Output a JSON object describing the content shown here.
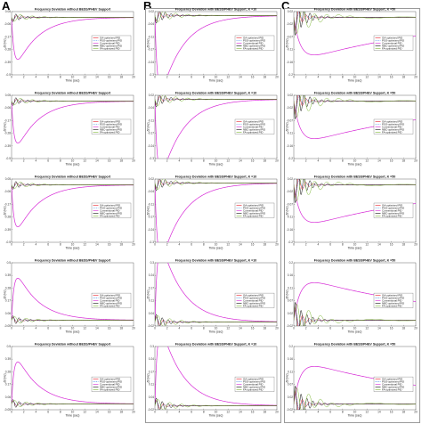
{
  "figure": {
    "panels": [
      {
        "label": "A",
        "legend": [
          "GA-optimized PID",
          "PSO-optimized PID",
          "Conventional PID",
          "NBC-optimized PID",
          "FA-optimized PID"
        ]
      },
      {
        "label": "B"
      },
      {
        "label": "C"
      }
    ]
  },
  "colors": {
    "ga": "#e8202a",
    "pso": "#2e7fe6",
    "conv": "#d628d6",
    "nbc": "#111111",
    "fa": "#7cb733"
  },
  "chart_data": [
    {
      "type": "line",
      "column": "A",
      "title": "Frequency Deviation without BESS/PHEV Support",
      "xlabel": "Time (sec)",
      "ylabel": "Δf (Hz)",
      "xlim": [
        0,
        20
      ],
      "ylim": [
        -0.5,
        0.05
      ],
      "shape": "dip",
      "series": [
        {
          "name": "GA-optimized PID",
          "color": "#e8202a"
        },
        {
          "name": "PSO-optimized PID",
          "color": "#2e7fe6"
        },
        {
          "name": "Conventional PID",
          "color": "#d628d6"
        },
        {
          "name": "NBC-optimized PID",
          "color": "#111111"
        },
        {
          "name": "FA-optimized PID",
          "color": "#7cb733"
        }
      ]
    },
    {
      "type": "line",
      "column": "A",
      "title": "Frequency Deviation without BESS/PHEV Support",
      "xlabel": "Time (sec)",
      "ylabel": "Δf (Hz)",
      "xlim": [
        0,
        20
      ],
      "ylim": [
        -0.5,
        0.05
      ],
      "shape": "dip",
      "series": [
        {
          "name": "GA-optimized PID",
          "color": "#e8202a"
        },
        {
          "name": "PSO-optimized PID",
          "color": "#2e7fe6"
        },
        {
          "name": "Conventional PID",
          "color": "#d628d6"
        },
        {
          "name": "NBC-optimized PID",
          "color": "#111111"
        },
        {
          "name": "FA-optimized PID",
          "color": "#7cb733"
        }
      ]
    },
    {
      "type": "line",
      "column": "A",
      "title": "Frequency Deviation without BESS/PHEV Support",
      "xlabel": "Time (sec)",
      "ylabel": "Δf (Hz)",
      "xlim": [
        0,
        20
      ],
      "ylim": [
        -0.5,
        0.05
      ],
      "shape": "dip",
      "series": [
        {
          "name": "GA-optimized PID",
          "color": "#e8202a"
        },
        {
          "name": "PSO-optimized PID",
          "color": "#2e7fe6"
        },
        {
          "name": "Conventional PID",
          "color": "#d628d6"
        },
        {
          "name": "NBC-optimized PID",
          "color": "#111111"
        },
        {
          "name": "FA-optimized PID",
          "color": "#7cb733"
        }
      ]
    },
    {
      "type": "line",
      "column": "A",
      "title": "Frequency Deviation without BESS/PHEV Support",
      "xlabel": "Time (sec)",
      "ylabel": "Δf (Hz)",
      "xlim": [
        0,
        20
      ],
      "ylim": [
        -0.05,
        0.5
      ],
      "shape": "peak",
      "series": [
        {
          "name": "GA-optimized PID",
          "color": "#e8202a"
        },
        {
          "name": "PSO-optimized PID",
          "color": "#2e7fe6"
        },
        {
          "name": "Conventional PID",
          "color": "#d628d6"
        },
        {
          "name": "NBC-optimized PID",
          "color": "#111111"
        },
        {
          "name": "FA-optimized PID",
          "color": "#7cb733"
        }
      ]
    },
    {
      "type": "line",
      "column": "A",
      "title": "Frequency Deviation without BESS/PHEV Support",
      "xlabel": "Time (sec)",
      "ylabel": "Δf (Hz)",
      "xlim": [
        0,
        20
      ],
      "ylim": [
        -0.05,
        0.5
      ],
      "shape": "peak",
      "series": [
        {
          "name": "GA-optimized PID",
          "color": "#e8202a"
        },
        {
          "name": "PSO-optimized PID",
          "color": "#2e7fe6"
        },
        {
          "name": "Conventional PID",
          "color": "#d628d6"
        },
        {
          "name": "NBC-optimized PID",
          "color": "#111111"
        },
        {
          "name": "FA-optimized PID",
          "color": "#7cb733"
        }
      ]
    },
    {
      "type": "line",
      "column": "B",
      "title": "Frequency Deviation with BESS/PHEV Support, K =10",
      "xlabel": "Time (sec)",
      "ylabel": "Δf (Hz)",
      "xlim": [
        0,
        20
      ],
      "ylim": [
        -0.3,
        0.02
      ],
      "shape": "dip",
      "series": [
        {
          "name": "GA-optimized PID",
          "color": "#e8202a"
        },
        {
          "name": "PSO-optimized PID",
          "color": "#2e7fe6"
        },
        {
          "name": "Conventional PID",
          "color": "#d628d6"
        },
        {
          "name": "NBC-optimized PID",
          "color": "#111111"
        },
        {
          "name": "FA-optimized PID",
          "color": "#7cb733"
        }
      ]
    },
    {
      "type": "line",
      "column": "B",
      "title": "Frequency Deviation with BESS/PHEV Support, K =10",
      "xlabel": "Time (sec)",
      "ylabel": "Δf (Hz)",
      "xlim": [
        0,
        20
      ],
      "ylim": [
        -0.3,
        0.02
      ],
      "shape": "dip",
      "series": [
        {
          "name": "GA-optimized PID",
          "color": "#e8202a"
        },
        {
          "name": "PSO-optimized PID",
          "color": "#2e7fe6"
        },
        {
          "name": "Conventional PID",
          "color": "#d628d6"
        },
        {
          "name": "NBC-optimized PID",
          "color": "#111111"
        },
        {
          "name": "FA-optimized PID",
          "color": "#7cb733"
        }
      ]
    },
    {
      "type": "line",
      "column": "B",
      "title": "Frequency Deviation with BESS/PHEV Support, K =10",
      "xlabel": "Time (sec)",
      "ylabel": "Δf (Hz)",
      "xlim": [
        0,
        20
      ],
      "ylim": [
        -0.3,
        0.02
      ],
      "shape": "dip",
      "series": [
        {
          "name": "GA-optimized PID",
          "color": "#e8202a"
        },
        {
          "name": "PSO-optimized PID",
          "color": "#2e7fe6"
        },
        {
          "name": "Conventional PID",
          "color": "#d628d6"
        },
        {
          "name": "NBC-optimized PID",
          "color": "#111111"
        },
        {
          "name": "FA-optimized PID",
          "color": "#7cb733"
        }
      ]
    },
    {
      "type": "line",
      "column": "B",
      "title": "Frequency Deviation with BESS/PHEV Support, K =10",
      "xlabel": "Time (sec)",
      "ylabel": "Δf (Hz)",
      "xlim": [
        0,
        20
      ],
      "ylim": [
        -0.02,
        0.3
      ],
      "shape": "peak",
      "series": [
        {
          "name": "GA-optimized PID",
          "color": "#e8202a"
        },
        {
          "name": "PSO-optimized PID",
          "color": "#2e7fe6"
        },
        {
          "name": "Conventional PID",
          "color": "#d628d6"
        },
        {
          "name": "NBC-optimized PID",
          "color": "#111111"
        },
        {
          "name": "FA-optimized PID",
          "color": "#7cb733"
        }
      ]
    },
    {
      "type": "line",
      "column": "B",
      "title": "Frequency Deviation with BESS/PHEV Support, K =10",
      "xlabel": "Time (sec)",
      "ylabel": "Δf (Hz)",
      "xlim": [
        0,
        20
      ],
      "ylim": [
        -0.02,
        0.3
      ],
      "shape": "peak",
      "series": [
        {
          "name": "GA-optimized PID",
          "color": "#e8202a"
        },
        {
          "name": "PSO-optimized PID",
          "color": "#2e7fe6"
        },
        {
          "name": "Conventional PID",
          "color": "#d628d6"
        },
        {
          "name": "NBC-optimized PID",
          "color": "#111111"
        },
        {
          "name": "FA-optimized PID",
          "color": "#7cb733"
        }
      ]
    },
    {
      "type": "line",
      "column": "C",
      "title": "Frequency Deviation with BESS/PHEV Support, K =50",
      "xlabel": "Time (sec)",
      "ylabel": "Δf (Hz)",
      "xlim": [
        0,
        20
      ],
      "ylim": [
        -0.2,
        0.02
      ],
      "shape": "slowdip",
      "series": [
        {
          "name": "GA-optimized PID",
          "color": "#e8202a"
        },
        {
          "name": "PSO-optimized PID",
          "color": "#2e7fe6"
        },
        {
          "name": "Conventional PID",
          "color": "#d628d6"
        },
        {
          "name": "NBC-optimized PID",
          "color": "#111111"
        },
        {
          "name": "FA-optimized PID",
          "color": "#7cb733"
        }
      ]
    },
    {
      "type": "line",
      "column": "C",
      "title": "Frequency Deviation with BESS/PHEV Support, K =50",
      "xlabel": "Time (sec)",
      "ylabel": "Δf (Hz)",
      "xlim": [
        0,
        20
      ],
      "ylim": [
        -0.2,
        0.02
      ],
      "shape": "slowdip",
      "series": [
        {
          "name": "GA-optimized PID",
          "color": "#e8202a"
        },
        {
          "name": "PSO-optimized PID",
          "color": "#2e7fe6"
        },
        {
          "name": "Conventional PID",
          "color": "#d628d6"
        },
        {
          "name": "NBC-optimized PID",
          "color": "#111111"
        },
        {
          "name": "FA-optimized PID",
          "color": "#7cb733"
        }
      ]
    },
    {
      "type": "line",
      "column": "C",
      "title": "Frequency Deviation with BESS/PHEV Support, K =50",
      "xlabel": "Time (sec)",
      "ylabel": "Δf (Hz)",
      "xlim": [
        0,
        20
      ],
      "ylim": [
        -0.2,
        0.02
      ],
      "shape": "slowdip",
      "series": [
        {
          "name": "GA-optimized PID",
          "color": "#e8202a"
        },
        {
          "name": "PSO-optimized PID",
          "color": "#2e7fe6"
        },
        {
          "name": "Conventional PID",
          "color": "#d628d6"
        },
        {
          "name": "NBC-optimized PID",
          "color": "#111111"
        },
        {
          "name": "FA-optimized PID",
          "color": "#7cb733"
        }
      ]
    },
    {
      "type": "line",
      "column": "C",
      "title": "Frequency Deviation with BESS/PHEV Support, K =50",
      "xlabel": "Time (sec)",
      "ylabel": "Δf (Hz)",
      "xlim": [
        0,
        20
      ],
      "ylim": [
        -0.02,
        0.2
      ],
      "shape": "slowpeak",
      "series": [
        {
          "name": "GA-optimized PID",
          "color": "#e8202a"
        },
        {
          "name": "PSO-optimized PID",
          "color": "#2e7fe6"
        },
        {
          "name": "Conventional PID",
          "color": "#d628d6"
        },
        {
          "name": "NBC-optimized PID",
          "color": "#111111"
        },
        {
          "name": "FA-optimized PID",
          "color": "#7cb733"
        }
      ]
    },
    {
      "type": "line",
      "column": "C",
      "title": "Frequency Deviation with BESS/PHEV Support, K =50",
      "xlabel": "Time (sec)",
      "ylabel": "Δf (Hz)",
      "xlim": [
        0,
        20
      ],
      "ylim": [
        -0.02,
        0.2
      ],
      "shape": "slowpeak",
      "series": [
        {
          "name": "GA-optimized PID",
          "color": "#e8202a"
        },
        {
          "name": "PSO-optimized PID",
          "color": "#2e7fe6"
        },
        {
          "name": "Conventional PID",
          "color": "#d628d6"
        },
        {
          "name": "NBC-optimized PID",
          "color": "#111111"
        },
        {
          "name": "FA-optimized PID",
          "color": "#7cb733"
        }
      ]
    }
  ]
}
